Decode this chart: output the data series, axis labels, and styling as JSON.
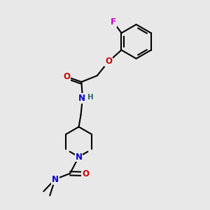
{
  "bg_color": "#e8e8e8",
  "bond_color": "#000000",
  "atom_colors": {
    "N": "#0000cc",
    "O": "#cc0000",
    "F": "#cc00cc",
    "H": "#336666",
    "C": "#000000"
  },
  "lw": 1.5,
  "dbo": 0.09,
  "figsize": [
    3.0,
    3.0
  ],
  "dpi": 100
}
